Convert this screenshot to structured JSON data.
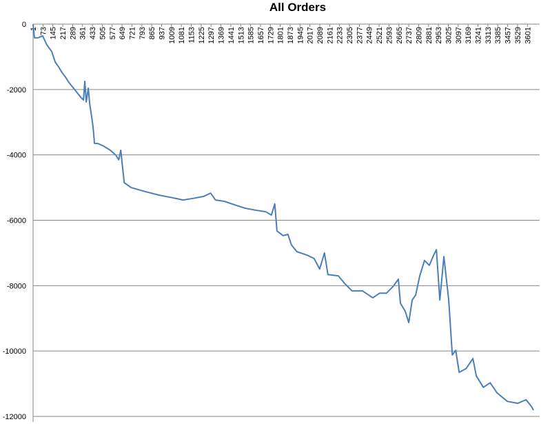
{
  "chart_data": {
    "type": "line",
    "title": "All Orders",
    "x": [
      1,
      11,
      36,
      71,
      101,
      137,
      162,
      187,
      212,
      237,
      263,
      313,
      353,
      368,
      378,
      388,
      403,
      413,
      428,
      438,
      448,
      473,
      514,
      564,
      604,
      625,
      640,
      650,
      665,
      715,
      816,
      917,
      1017,
      1093,
      1168,
      1243,
      1294,
      1329,
      1394,
      1470,
      1545,
      1621,
      1696,
      1736,
      1761,
      1777,
      1822,
      1857,
      1882,
      1922,
      1998,
      2048,
      2088,
      2123,
      2148,
      2224,
      2274,
      2324,
      2400,
      2475,
      2525,
      2575,
      2626,
      2661,
      2676,
      2712,
      2737,
      2762,
      2787,
      2817,
      2852,
      2887,
      2918,
      2938,
      2963,
      2993,
      3028,
      3054,
      3079,
      3104,
      3154,
      3204,
      3229,
      3280,
      3330,
      3380,
      3455,
      3531,
      3591,
      3631,
      3646
    ],
    "series": [
      {
        "name": "All Orders",
        "color": "#4a7ebb",
        "values": [
          0,
          -420,
          -420,
          -360,
          -630,
          -840,
          -1160,
          -1310,
          -1480,
          -1620,
          -1790,
          -2050,
          -2260,
          -2320,
          -1750,
          -2380,
          -1960,
          -2430,
          -2850,
          -3160,
          -3650,
          -3650,
          -3730,
          -3860,
          -4010,
          -4150,
          -3860,
          -4280,
          -4850,
          -5000,
          -5120,
          -5230,
          -5310,
          -5380,
          -5330,
          -5270,
          -5170,
          -5380,
          -5420,
          -5530,
          -5630,
          -5690,
          -5740,
          -5840,
          -5500,
          -6330,
          -6470,
          -6430,
          -6750,
          -6960,
          -7070,
          -7170,
          -7490,
          -7000,
          -7660,
          -7700,
          -7950,
          -8160,
          -8160,
          -8370,
          -8230,
          -8230,
          -8010,
          -7800,
          -8540,
          -8790,
          -9130,
          -8440,
          -8290,
          -7700,
          -7230,
          -7380,
          -7070,
          -6900,
          -8440,
          -7110,
          -8440,
          -10120,
          -9980,
          -10650,
          -10540,
          -10230,
          -10760,
          -11110,
          -10970,
          -11280,
          -11540,
          -11600,
          -11490,
          -11700,
          -11810
        ]
      }
    ],
    "xlim": [
      1,
      3690
    ],
    "xticks": [
      1,
      73,
      145,
      217,
      289,
      361,
      433,
      505,
      577,
      649,
      721,
      793,
      865,
      937,
      1009,
      1081,
      1153,
      1225,
      1297,
      1369,
      1441,
      1513,
      1585,
      1657,
      1729,
      1801,
      1873,
      1945,
      2017,
      2089,
      2161,
      2233,
      2305,
      2377,
      2449,
      2521,
      2593,
      2665,
      2737,
      2809,
      2881,
      2953,
      3025,
      3097,
      3169,
      3241,
      3313,
      3385,
      3457,
      3529,
      3601
    ],
    "ylim": [
      -12000,
      0
    ],
    "yticks": [
      0,
      -2000,
      -4000,
      -6000,
      -8000,
      -10000,
      -12000
    ],
    "grid": true
  }
}
